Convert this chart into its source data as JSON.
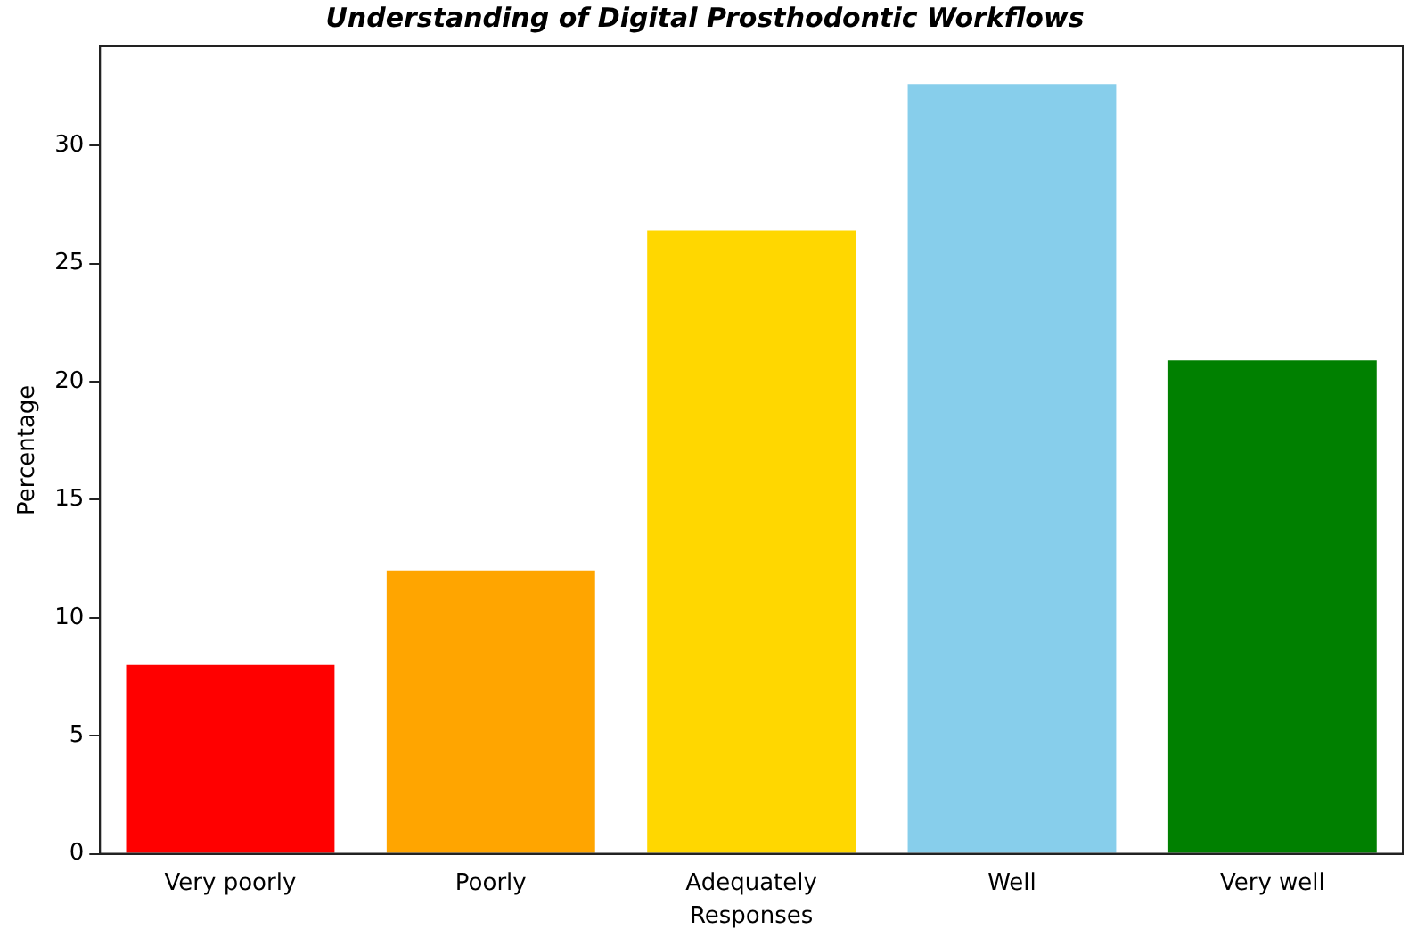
{
  "chart_data": {
    "type": "bar",
    "title": "Understanding of Digital Prosthodontic Workflows",
    "xlabel": "Responses",
    "ylabel": "Percentage",
    "categories": [
      "Very poorly",
      "Poorly",
      "Adequately",
      "Well",
      "Very well"
    ],
    "values": [
      8,
      12,
      26.4,
      32.6,
      20.9
    ],
    "colors": [
      "#ff0000",
      "#ffa500",
      "#ffd700",
      "#87ceeb",
      "#008000"
    ],
    "ylim": [
      0,
      34.2
    ],
    "yticks": [
      0,
      5,
      10,
      15,
      20,
      25,
      30
    ],
    "grid": false,
    "legend": false
  }
}
